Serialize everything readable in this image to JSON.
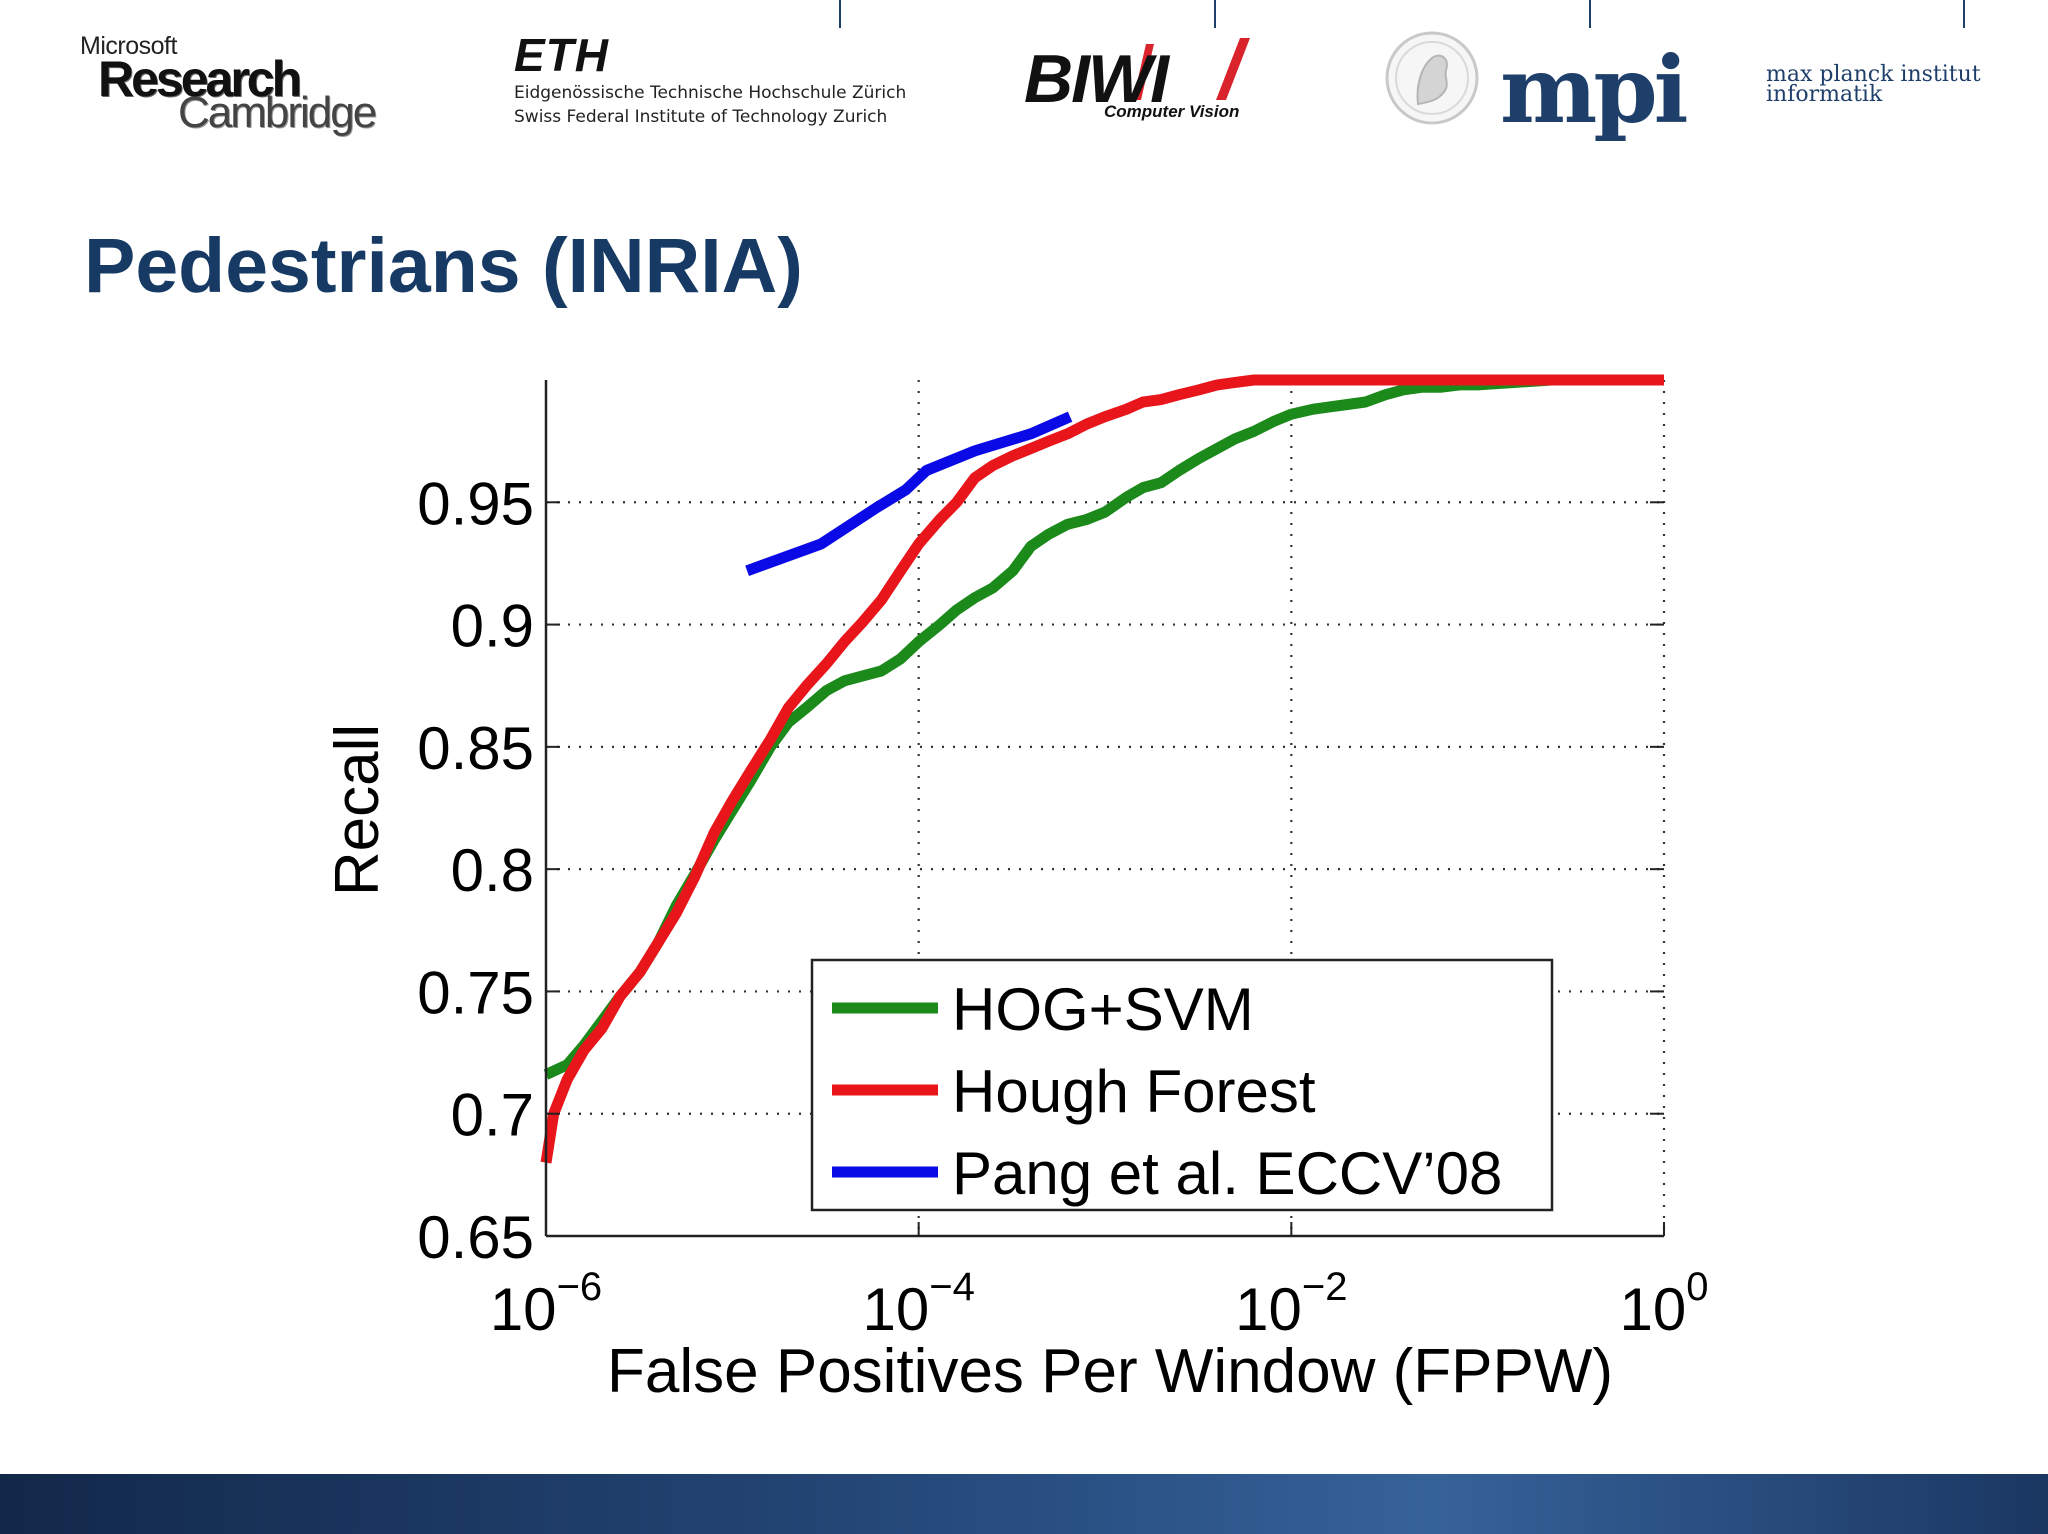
{
  "header": {
    "logos": {
      "msr": {
        "line1": "Microsoft",
        "line2": "Research",
        "line3": "Cambridge"
      },
      "eth": {
        "mark": "ETH",
        "line1": "Eidgenössische Technische Hochschule Zürich",
        "line2": "Swiss Federal Institute of Technology Zurich"
      },
      "biwi": {
        "mark": "BIWI",
        "sub": "Computer Vision"
      },
      "mpi": {
        "mark": "mpi",
        "line1": "max planck institut",
        "line2": "informatik"
      }
    }
  },
  "slide": {
    "title": "Pedestrians (INRIA)"
  },
  "colors": {
    "title": "#163a64",
    "hog": "#1b8a1b",
    "hough": "#e8161b",
    "pang": "#0a0ae6"
  },
  "chart_data": {
    "type": "line",
    "xscale": "log",
    "xlabel": "False Positives Per Window (FPPW)",
    "ylabel": "Recall",
    "xlim": [
      1e-06,
      1
    ],
    "ylim": [
      0.65,
      1.0
    ],
    "x_ticks": [
      {
        "base": "10",
        "exp": "−6"
      },
      {
        "base": "10",
        "exp": "−4"
      },
      {
        "base": "10",
        "exp": "−2"
      },
      {
        "base": "10",
        "exp": "0"
      }
    ],
    "y_ticks": [
      "0.65",
      "0.7",
      "0.75",
      "0.8",
      "0.85",
      "0.9",
      "0.95"
    ],
    "grid": true,
    "legend_position": "lower-right",
    "series": [
      {
        "name": "HOG+SVM",
        "color": "#1b8a1b",
        "points": [
          [
            1e-06,
            0.716
          ],
          [
            1.3e-06,
            0.72
          ],
          [
            1.6e-06,
            0.728
          ],
          [
            2e-06,
            0.738
          ],
          [
            2.5e-06,
            0.748
          ],
          [
            3.2e-06,
            0.758
          ],
          [
            4e-06,
            0.77
          ],
          [
            5e-06,
            0.785
          ],
          [
            6.3e-06,
            0.798
          ],
          [
            8e-06,
            0.812
          ],
          [
            1e-05,
            0.824
          ],
          [
            1.25e-05,
            0.836
          ],
          [
            1.6e-05,
            0.85
          ],
          [
            2e-05,
            0.86
          ],
          [
            2.5e-05,
            0.866
          ],
          [
            3.2e-05,
            0.873
          ],
          [
            4e-05,
            0.877
          ],
          [
            5e-05,
            0.879
          ],
          [
            6.3e-05,
            0.881
          ],
          [
            8e-05,
            0.886
          ],
          [
            0.0001,
            0.893
          ],
          [
            0.00013,
            0.9
          ],
          [
            0.00016,
            0.906
          ],
          [
            0.0002,
            0.911
          ],
          [
            0.00025,
            0.915
          ],
          [
            0.00032,
            0.922
          ],
          [
            0.0004,
            0.932
          ],
          [
            0.0005,
            0.937
          ],
          [
            0.00063,
            0.941
          ],
          [
            0.0008,
            0.943
          ],
          [
            0.001,
            0.946
          ],
          [
            0.0013,
            0.952
          ],
          [
            0.0016,
            0.956
          ],
          [
            0.002,
            0.958
          ],
          [
            0.0025,
            0.963
          ],
          [
            0.0032,
            0.968
          ],
          [
            0.004,
            0.972
          ],
          [
            0.005,
            0.976
          ],
          [
            0.0063,
            0.979
          ],
          [
            0.008,
            0.983
          ],
          [
            0.01,
            0.986
          ],
          [
            0.013,
            0.988
          ],
          [
            0.016,
            0.989
          ],
          [
            0.02,
            0.99
          ],
          [
            0.025,
            0.991
          ],
          [
            0.032,
            0.994
          ],
          [
            0.04,
            0.996
          ],
          [
            0.05,
            0.997
          ],
          [
            0.063,
            0.997
          ],
          [
            0.08,
            0.998
          ],
          [
            0.1,
            0.998
          ],
          [
            0.16,
            0.999
          ],
          [
            0.25,
            1.0
          ],
          [
            0.4,
            1.0
          ],
          [
            0.63,
            1.0
          ],
          [
            1.0,
            1.0
          ]
        ]
      },
      {
        "name": "Hough Forest",
        "color": "#e8161b",
        "points": [
          [
            1e-06,
            0.68
          ],
          [
            1.1e-06,
            0.7
          ],
          [
            1.3e-06,
            0.714
          ],
          [
            1.6e-06,
            0.726
          ],
          [
            2e-06,
            0.735
          ],
          [
            2.5e-06,
            0.748
          ],
          [
            3.2e-06,
            0.758
          ],
          [
            4e-06,
            0.77
          ],
          [
            5e-06,
            0.782
          ],
          [
            6.3e-06,
            0.797
          ],
          [
            8e-06,
            0.815
          ],
          [
            1e-05,
            0.828
          ],
          [
            1.25e-05,
            0.84
          ],
          [
            1.6e-05,
            0.853
          ],
          [
            2e-05,
            0.866
          ],
          [
            2.5e-05,
            0.875
          ],
          [
            3.2e-05,
            0.884
          ],
          [
            4e-05,
            0.893
          ],
          [
            5e-05,
            0.901
          ],
          [
            6.3e-05,
            0.91
          ],
          [
            8e-05,
            0.922
          ],
          [
            0.0001,
            0.933
          ],
          [
            0.00013,
            0.943
          ],
          [
            0.00016,
            0.95
          ],
          [
            0.0002,
            0.96
          ],
          [
            0.00025,
            0.965
          ],
          [
            0.00032,
            0.969
          ],
          [
            0.0004,
            0.972
          ],
          [
            0.0005,
            0.975
          ],
          [
            0.00063,
            0.978
          ],
          [
            0.0008,
            0.982
          ],
          [
            0.001,
            0.985
          ],
          [
            0.0013,
            0.988
          ],
          [
            0.0016,
            0.991
          ],
          [
            0.002,
            0.992
          ],
          [
            0.0025,
            0.994
          ],
          [
            0.0032,
            0.996
          ],
          [
            0.004,
            0.998
          ],
          [
            0.005,
            0.999
          ],
          [
            0.0063,
            1.0
          ],
          [
            0.01,
            1.0
          ],
          [
            0.1,
            1.0
          ],
          [
            1.0,
            1.0
          ]
        ]
      },
      {
        "name": "Pang et al. ECCV’08",
        "color": "#0a0ae6",
        "points": [
          [
            1.2e-05,
            0.922
          ],
          [
            3e-05,
            0.933
          ],
          [
            6e-05,
            0.948
          ],
          [
            8.5e-05,
            0.955
          ],
          [
            0.00011,
            0.963
          ],
          [
            0.0002,
            0.971
          ],
          [
            0.0004,
            0.978
          ],
          [
            0.00065,
            0.985
          ]
        ]
      }
    ]
  }
}
